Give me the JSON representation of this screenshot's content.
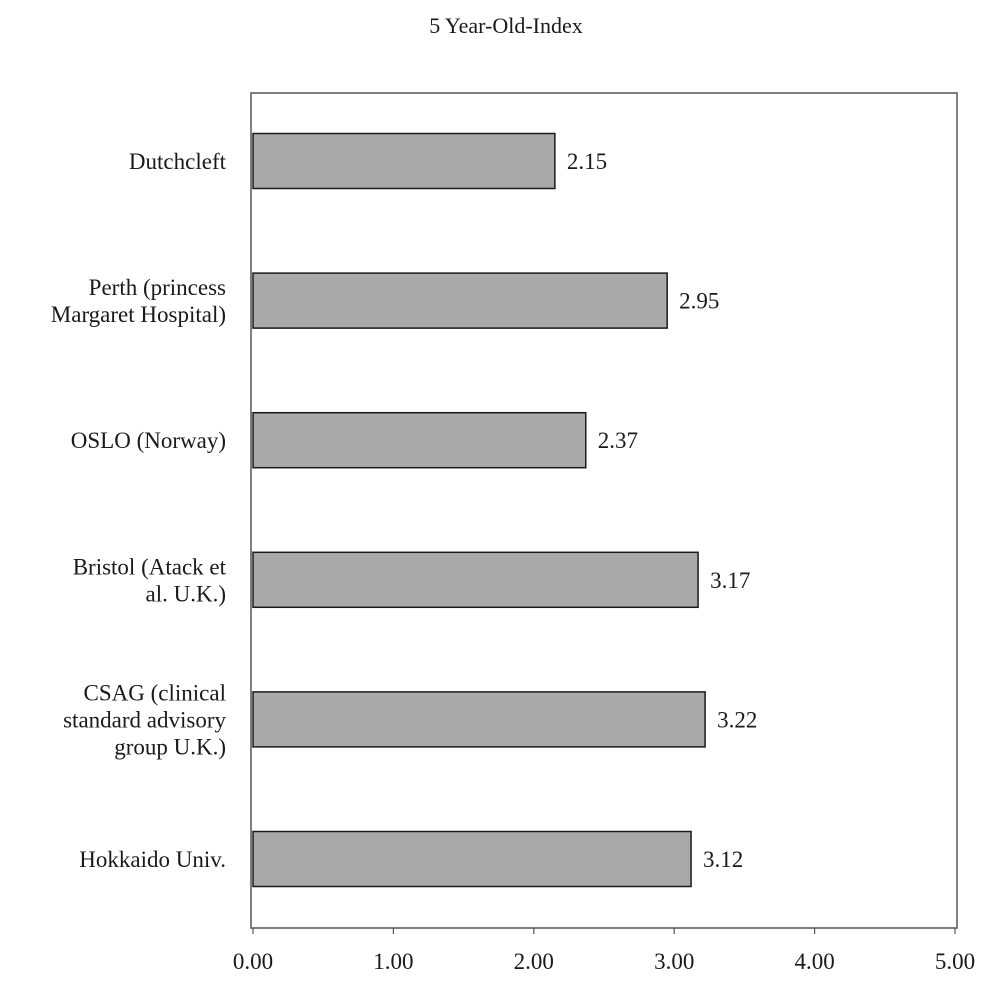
{
  "chart_data": {
    "type": "bar",
    "orientation": "horizontal",
    "title": "5 Year-Old-Index",
    "categories": [
      [
        "Dutchcleft"
      ],
      [
        "Perth (princess",
        "Margaret Hospital)"
      ],
      [
        "OSLO (Norway)"
      ],
      [
        "Bristol (Atack et",
        "al. U.K.)"
      ],
      [
        "CSAG (clinical",
        "standard advisory",
        "group U.K.)"
      ],
      [
        "Hokkaido Univ."
      ]
    ],
    "values": [
      2.15,
      2.95,
      2.37,
      3.17,
      3.22,
      3.12
    ],
    "value_labels": [
      "2.15",
      "2.95",
      "2.37",
      "3.17",
      "3.22",
      "3.12"
    ],
    "xlim": [
      0,
      5
    ],
    "xticks": [
      0,
      1,
      2,
      3,
      4,
      5
    ],
    "xtick_labels": [
      "0.00",
      "1.00",
      "2.00",
      "3.00",
      "4.00",
      "5.00"
    ],
    "xlabel": "",
    "ylabel": "",
    "grid": false,
    "legend": "none",
    "bar_color": "#a9a9a9",
    "bar_edge_color": "#1a1a1a"
  }
}
